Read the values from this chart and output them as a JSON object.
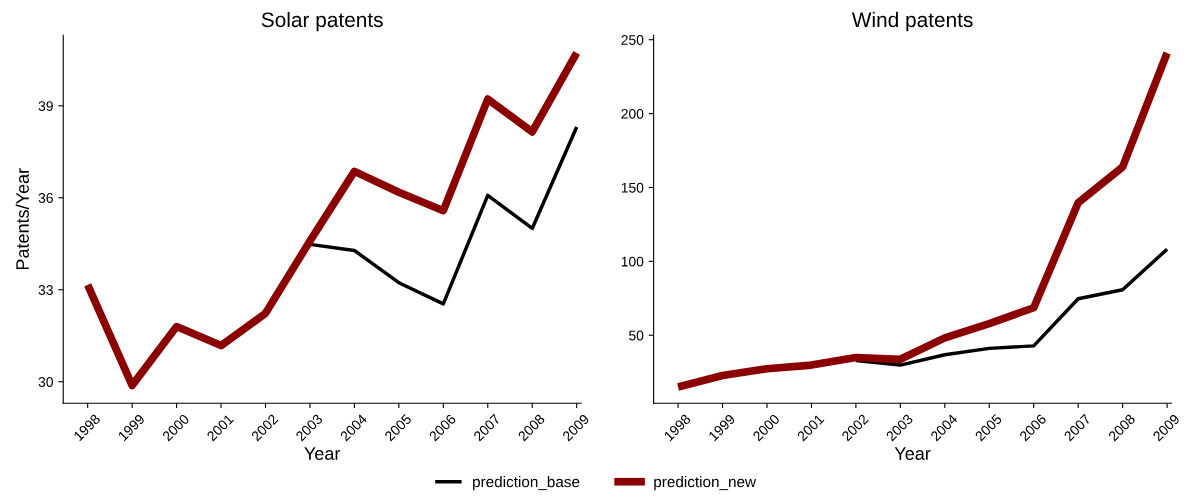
{
  "chart_data": [
    {
      "type": "line",
      "title": "Solar patents",
      "xlabel": "Year",
      "ylabel": "Patents/Year",
      "categories": [
        "1998",
        "1999",
        "2000",
        "2001",
        "2002",
        "2003",
        "2004",
        "2005",
        "2006",
        "2007",
        "2008",
        "2009"
      ],
      "series": [
        {
          "name": "prediction_base",
          "color": "#000000",
          "values": [
            null,
            null,
            null,
            null,
            null,
            34.48,
            34.28,
            33.23,
            32.54,
            36.08,
            35.0,
            38.31
          ]
        },
        {
          "name": "prediction_new",
          "color": "#8b0000",
          "values": [
            33.16,
            29.88,
            31.8,
            31.18,
            32.23,
            34.59,
            36.86,
            36.18,
            35.58,
            39.22,
            38.15,
            40.73
          ]
        }
      ],
      "ylim": [
        29.3,
        41.3
      ],
      "yticks": [
        30,
        33,
        36,
        39
      ],
      "grid": false,
      "legend": "bottom",
      "marker": "none",
      "line_style": "solid"
    },
    {
      "type": "line",
      "title": "Wind patents",
      "xlabel": "Year",
      "categories": [
        "1998",
        "1999",
        "2000",
        "2001",
        "2002",
        "2003",
        "2004",
        "2005",
        "2006",
        "2007",
        "2008",
        "2009"
      ],
      "series": [
        {
          "name": "prediction_base",
          "color": "#000000",
          "values": [
            null,
            null,
            null,
            null,
            32.9,
            29.8,
            36.8,
            41.1,
            42.8,
            74.7,
            80.8,
            108.2
          ]
        },
        {
          "name": "prediction_new",
          "color": "#8b0000",
          "values": [
            15.0,
            22.7,
            27.3,
            29.8,
            34.9,
            33.7,
            48.2,
            57.9,
            68.6,
            139.6,
            163.9,
            241
          ]
        }
      ],
      "ylim": [
        4,
        253
      ],
      "yticks": [
        50,
        100,
        150,
        200,
        250
      ],
      "grid": false,
      "legend": "bottom",
      "marker": "none",
      "line_style": "solid"
    }
  ]
}
